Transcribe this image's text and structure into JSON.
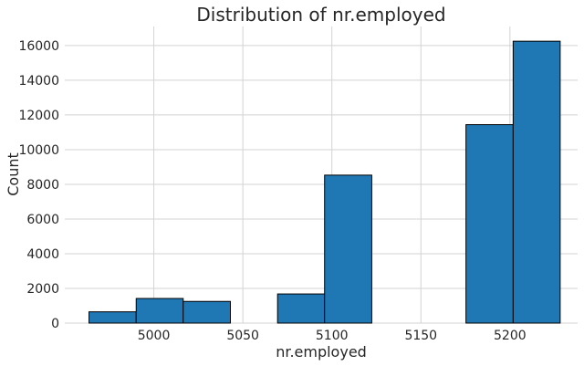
{
  "chart_data": {
    "type": "bar",
    "title": "Distribution of nr.employed",
    "xlabel": "nr.employed",
    "ylabel": "Count",
    "xlim": [
      4950,
      5238
    ],
    "ylim": [
      0,
      17100
    ],
    "grid": true,
    "legend": "none",
    "bar_color": "#1f77b4",
    "x_ticks": [
      5000,
      5050,
      5100,
      5150,
      5200
    ],
    "y_ticks": [
      0,
      2000,
      4000,
      6000,
      8000,
      10000,
      12000,
      14000,
      16000
    ],
    "bins": [
      {
        "start": 4963.6,
        "end": 4990.1,
        "count": 650
      },
      {
        "start": 4990.1,
        "end": 5016.5,
        "count": 1420
      },
      {
        "start": 5016.5,
        "end": 5043.0,
        "count": 1250
      },
      {
        "start": 5043.0,
        "end": 5069.5,
        "count": 0
      },
      {
        "start": 5069.5,
        "end": 5095.9,
        "count": 1680
      },
      {
        "start": 5095.9,
        "end": 5122.4,
        "count": 8530
      },
      {
        "start": 5122.4,
        "end": 5148.9,
        "count": 0
      },
      {
        "start": 5148.9,
        "end": 5175.3,
        "count": 0
      },
      {
        "start": 5175.3,
        "end": 5201.8,
        "count": 11440
      },
      {
        "start": 5201.8,
        "end": 5228.2,
        "count": 16250
      }
    ]
  }
}
